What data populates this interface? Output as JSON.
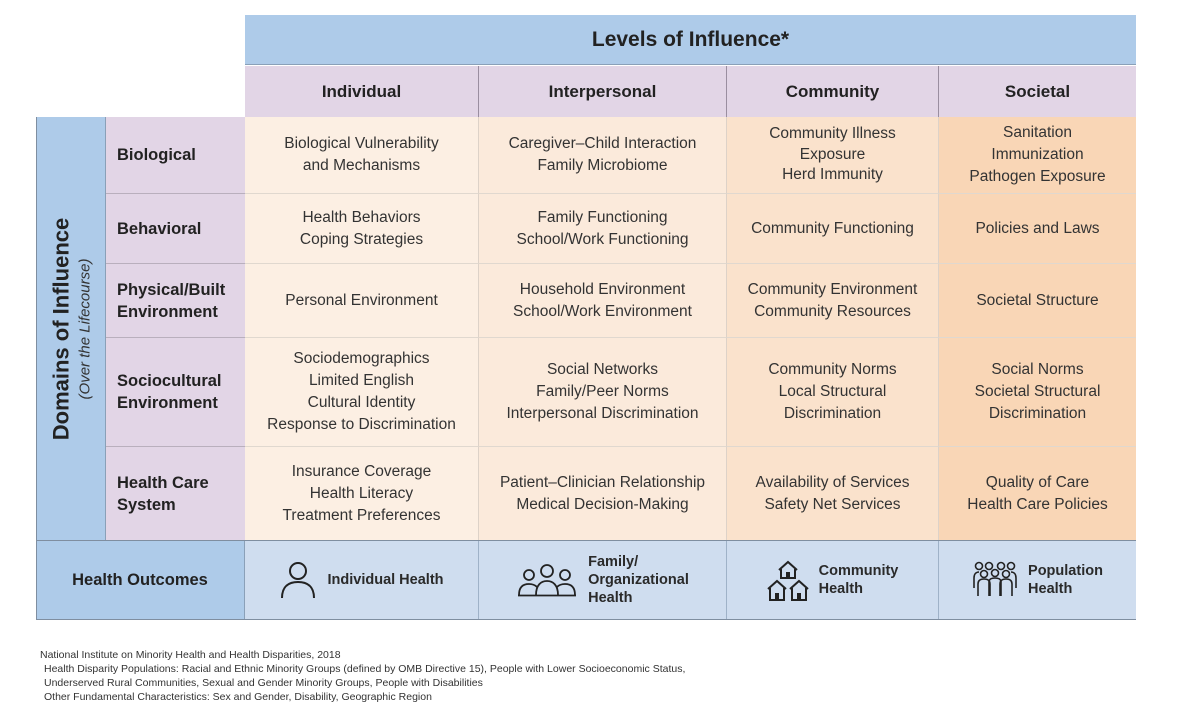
{
  "header": {
    "title": "Levels of Influence*"
  },
  "columns": [
    "Individual",
    "Interpersonal",
    "Community",
    "Societal"
  ],
  "domains": {
    "title": "Domains of Influence",
    "subtitle": "(Over the Lifecourse)"
  },
  "rows": [
    {
      "label_lines": [
        "Biological"
      ],
      "cells": [
        [
          "Biological Vulnerability",
          "and Mechanisms"
        ],
        [
          "Caregiver–Child Interaction",
          "Family Microbiome"
        ],
        [
          "Community Illness",
          "Exposure",
          "Herd Immunity"
        ],
        [
          "Sanitation",
          "Immunization",
          "Pathogen Exposure"
        ]
      ]
    },
    {
      "label_lines": [
        "Behavioral"
      ],
      "cells": [
        [
          "Health Behaviors",
          "Coping Strategies"
        ],
        [
          "Family Functioning",
          "School/Work Functioning"
        ],
        [
          "Community Functioning"
        ],
        [
          "Policies and Laws"
        ]
      ]
    },
    {
      "label_lines": [
        "Physical/Built",
        "Environment"
      ],
      "cells": [
        [
          "Personal Environment"
        ],
        [
          "Household Environment",
          "School/Work Environment"
        ],
        [
          "Community Environment",
          "Community Resources"
        ],
        [
          "Societal Structure"
        ]
      ]
    },
    {
      "label_lines": [
        "Sociocultural",
        "Environment"
      ],
      "cells": [
        [
          "Sociodemographics",
          "Limited English",
          "Cultural Identity",
          "Response to Discrimination"
        ],
        [
          "Social Networks",
          "Family/Peer Norms",
          "Interpersonal Discrimination"
        ],
        [
          "Community Norms",
          "Local Structural",
          "Discrimination"
        ],
        [
          "Social Norms",
          "Societal Structural",
          "Discrimination"
        ]
      ]
    },
    {
      "label_lines": [
        "Health Care",
        "System"
      ],
      "cells": [
        [
          "Insurance Coverage",
          "Health Literacy",
          "Treatment Preferences"
        ],
        [
          "Patient–Clinician Relationship",
          "Medical Decision-Making"
        ],
        [
          "Availability of Services",
          "Safety Net Services"
        ],
        [
          "Quality of Care",
          "Health Care Policies"
        ]
      ]
    }
  ],
  "outcomes": {
    "label": "Health Outcomes",
    "items": [
      {
        "icon": "person-icon",
        "lines": [
          "Individual Health"
        ]
      },
      {
        "icon": "family-icon",
        "lines": [
          "Family/",
          "Organizational",
          "Health"
        ]
      },
      {
        "icon": "houses-icon",
        "lines": [
          "Community",
          "Health"
        ]
      },
      {
        "icon": "crowd-icon",
        "lines": [
          "Population",
          "Health"
        ]
      }
    ]
  },
  "footer": [
    "National Institute on Minority Health and Health Disparities, 2018",
    "Health Disparity Populations: Racial and Ethnic Minority Groups (defined by OMB Directive 15), People with Lower Socioeconomic Status,",
    "Underserved Rural Communities, Sexual and Gender Minority Groups, People with Disabilities",
    "Other Fundamental Characteristics: Sex and Gender, Disability, Geographic Region"
  ]
}
